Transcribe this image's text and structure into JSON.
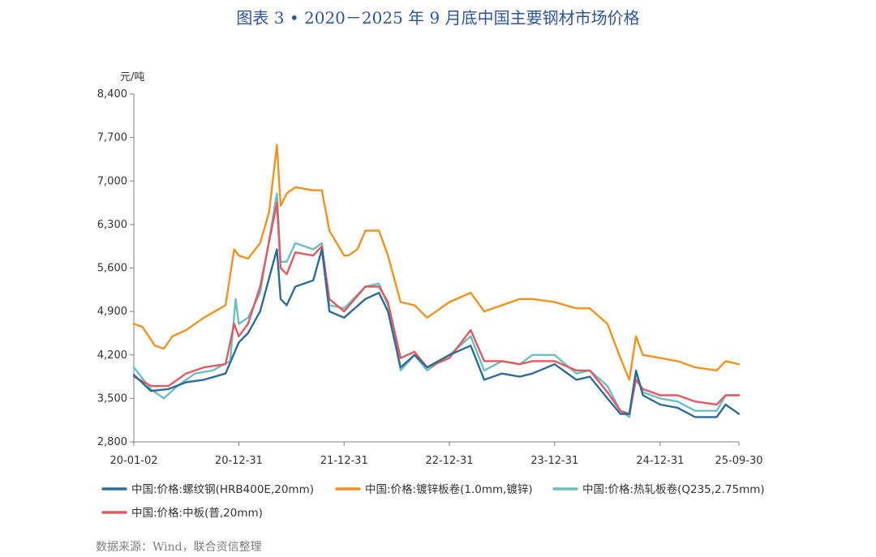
{
  "title": "图表 3 • 2020－2025 年 9 月底中国主要钢材市场价格",
  "unit_label": "元/吨",
  "source": "数据来源：Wind，联合资信整理",
  "colors": {
    "rebar": "#2e6c97",
    "galv": "#f0921e",
    "hot": "#6bbfc2",
    "plate": "#e05a62"
  },
  "chart_data": {
    "type": "line",
    "title": "图表 3 • 2020－2025 年 9 月底中国主要钢材市场价格",
    "ylabel": "元/吨",
    "ylim": [
      2800,
      8400
    ],
    "yticks": [
      2800,
      3500,
      4200,
      4900,
      5600,
      6300,
      7000,
      7700,
      8400
    ],
    "ytick_labels": [
      "2,800",
      "3,500",
      "4,200",
      "4,900",
      "5,600",
      "6,300",
      "7,000",
      "7,700",
      "8,400"
    ],
    "xlim": [
      "2020-01-02",
      "2025-09-30"
    ],
    "xticks": [
      "2020-01-02",
      "2020-12-31",
      "2021-12-31",
      "2022-12-31",
      "2023-12-31",
      "2024-12-31",
      "2025-09-30"
    ],
    "xtick_labels": [
      "20-01-02",
      "20-12-31",
      "21-12-31",
      "22-12-31",
      "23-12-31",
      "24-12-31",
      "25-09-30"
    ],
    "legend_position": "bottom",
    "series": [
      {
        "name": "中国:价格:螺纹钢(HRB400E,20mm)",
        "color": "#2e6c97",
        "points": [
          [
            "2020-01-02",
            3880
          ],
          [
            "2020-03-01",
            3620
          ],
          [
            "2020-05-01",
            3650
          ],
          [
            "2020-07-01",
            3760
          ],
          [
            "2020-09-01",
            3800
          ],
          [
            "2020-11-15",
            3900
          ],
          [
            "2020-12-31",
            4400
          ],
          [
            "2021-02-01",
            4550
          ],
          [
            "2021-03-15",
            4900
          ],
          [
            "2021-05-12",
            5900
          ],
          [
            "2021-05-25",
            5100
          ],
          [
            "2021-06-15",
            5000
          ],
          [
            "2021-07-15",
            5300
          ],
          [
            "2021-09-15",
            5400
          ],
          [
            "2021-10-15",
            5900
          ],
          [
            "2021-11-10",
            4900
          ],
          [
            "2021-12-31",
            4800
          ],
          [
            "2022-03-15",
            5100
          ],
          [
            "2022-05-01",
            5200
          ],
          [
            "2022-06-01",
            4900
          ],
          [
            "2022-07-15",
            4000
          ],
          [
            "2022-09-01",
            4200
          ],
          [
            "2022-10-15",
            4000
          ],
          [
            "2022-12-31",
            4200
          ],
          [
            "2023-03-15",
            4350
          ],
          [
            "2023-05-01",
            3800
          ],
          [
            "2023-07-01",
            3900
          ],
          [
            "2023-09-01",
            3850
          ],
          [
            "2023-10-15",
            3900
          ],
          [
            "2023-12-31",
            4050
          ],
          [
            "2024-03-15",
            3800
          ],
          [
            "2024-05-01",
            3850
          ],
          [
            "2024-07-01",
            3500
          ],
          [
            "2024-08-15",
            3250
          ],
          [
            "2024-09-15",
            3250
          ],
          [
            "2024-10-08",
            3950
          ],
          [
            "2024-11-01",
            3550
          ],
          [
            "2024-12-31",
            3400
          ],
          [
            "2025-03-01",
            3350
          ],
          [
            "2025-05-01",
            3200
          ],
          [
            "2025-07-15",
            3200
          ],
          [
            "2025-08-15",
            3400
          ],
          [
            "2025-09-30",
            3250
          ]
        ]
      },
      {
        "name": "中国:价格:镀锌板卷(1.0mm,镀锌)",
        "color": "#f0921e",
        "points": [
          [
            "2020-01-02",
            4700
          ],
          [
            "2020-02-01",
            4650
          ],
          [
            "2020-03-15",
            4350
          ],
          [
            "2020-04-15",
            4300
          ],
          [
            "2020-05-15",
            4500
          ],
          [
            "2020-07-01",
            4600
          ],
          [
            "2020-09-01",
            4800
          ],
          [
            "2020-11-15",
            5000
          ],
          [
            "2020-12-15",
            5900
          ],
          [
            "2020-12-31",
            5800
          ],
          [
            "2021-02-01",
            5750
          ],
          [
            "2021-03-15",
            6000
          ],
          [
            "2021-04-15",
            6500
          ],
          [
            "2021-05-12",
            7580
          ],
          [
            "2021-05-25",
            6600
          ],
          [
            "2021-06-15",
            6800
          ],
          [
            "2021-07-15",
            6900
          ],
          [
            "2021-09-15",
            6850
          ],
          [
            "2021-10-15",
            6850
          ],
          [
            "2021-11-10",
            6200
          ],
          [
            "2021-12-31",
            5800
          ],
          [
            "2022-01-15",
            5800
          ],
          [
            "2022-02-15",
            5900
          ],
          [
            "2022-03-15",
            6200
          ],
          [
            "2022-05-01",
            6200
          ],
          [
            "2022-06-01",
            5800
          ],
          [
            "2022-07-15",
            5050
          ],
          [
            "2022-09-01",
            5000
          ],
          [
            "2022-10-15",
            4800
          ],
          [
            "2022-12-31",
            5050
          ],
          [
            "2023-03-15",
            5200
          ],
          [
            "2023-05-01",
            4900
          ],
          [
            "2023-07-01",
            5000
          ],
          [
            "2023-09-01",
            5100
          ],
          [
            "2023-10-15",
            5100
          ],
          [
            "2023-12-31",
            5050
          ],
          [
            "2024-03-15",
            4950
          ],
          [
            "2024-05-01",
            4950
          ],
          [
            "2024-07-01",
            4700
          ],
          [
            "2024-08-15",
            4150
          ],
          [
            "2024-09-15",
            3800
          ],
          [
            "2024-10-08",
            4500
          ],
          [
            "2024-11-01",
            4200
          ],
          [
            "2024-12-31",
            4150
          ],
          [
            "2025-03-01",
            4100
          ],
          [
            "2025-05-01",
            4000
          ],
          [
            "2025-07-15",
            3950
          ],
          [
            "2025-08-15",
            4100
          ],
          [
            "2025-09-30",
            4050
          ]
        ]
      },
      {
        "name": "中国:价格:热轧板卷(Q235,2.75mm)",
        "color": "#6bbfc2",
        "points": [
          [
            "2020-01-02",
            4000
          ],
          [
            "2020-03-01",
            3650
          ],
          [
            "2020-04-15",
            3500
          ],
          [
            "2020-06-01",
            3700
          ],
          [
            "2020-08-01",
            3900
          ],
          [
            "2020-10-01",
            3950
          ],
          [
            "2020-12-01",
            4100
          ],
          [
            "2020-12-20",
            5100
          ],
          [
            "2020-12-31",
            4700
          ],
          [
            "2021-02-01",
            4800
          ],
          [
            "2021-03-15",
            5200
          ],
          [
            "2021-05-12",
            6800
          ],
          [
            "2021-05-25",
            5700
          ],
          [
            "2021-06-15",
            5700
          ],
          [
            "2021-07-15",
            6000
          ],
          [
            "2021-09-15",
            5900
          ],
          [
            "2021-10-15",
            6000
          ],
          [
            "2021-11-10",
            5000
          ],
          [
            "2021-12-31",
            4950
          ],
          [
            "2022-03-15",
            5300
          ],
          [
            "2022-05-01",
            5350
          ],
          [
            "2022-06-01",
            5000
          ],
          [
            "2022-07-15",
            3950
          ],
          [
            "2022-09-01",
            4200
          ],
          [
            "2022-10-15",
            3950
          ],
          [
            "2022-12-31",
            4200
          ],
          [
            "2023-03-15",
            4500
          ],
          [
            "2023-05-01",
            3950
          ],
          [
            "2023-07-01",
            4100
          ],
          [
            "2023-09-01",
            4050
          ],
          [
            "2023-10-15",
            4200
          ],
          [
            "2023-12-31",
            4200
          ],
          [
            "2024-03-15",
            3900
          ],
          [
            "2024-05-01",
            3950
          ],
          [
            "2024-07-01",
            3700
          ],
          [
            "2024-08-15",
            3300
          ],
          [
            "2024-09-15",
            3200
          ],
          [
            "2024-10-08",
            3900
          ],
          [
            "2024-11-01",
            3600
          ],
          [
            "2024-12-31",
            3500
          ],
          [
            "2025-03-01",
            3450
          ],
          [
            "2025-05-01",
            3300
          ],
          [
            "2025-07-15",
            3300
          ],
          [
            "2025-08-15",
            3550
          ],
          [
            "2025-09-30",
            3550
          ]
        ]
      },
      {
        "name": "中国:价格:中板(普,20mm)",
        "color": "#e05a62",
        "points": [
          [
            "2020-01-02",
            3850
          ],
          [
            "2020-03-01",
            3700
          ],
          [
            "2020-05-01",
            3700
          ],
          [
            "2020-07-01",
            3900
          ],
          [
            "2020-09-01",
            4000
          ],
          [
            "2020-11-15",
            4050
          ],
          [
            "2020-12-15",
            4700
          ],
          [
            "2020-12-31",
            4500
          ],
          [
            "2021-02-01",
            4700
          ],
          [
            "2021-03-15",
            5300
          ],
          [
            "2021-05-12",
            6650
          ],
          [
            "2021-05-25",
            5600
          ],
          [
            "2021-06-15",
            5500
          ],
          [
            "2021-07-15",
            5850
          ],
          [
            "2021-09-15",
            5800
          ],
          [
            "2021-10-15",
            5950
          ],
          [
            "2021-11-10",
            5100
          ],
          [
            "2021-12-31",
            4900
          ],
          [
            "2022-03-15",
            5300
          ],
          [
            "2022-05-01",
            5300
          ],
          [
            "2022-06-01",
            5050
          ],
          [
            "2022-07-15",
            4150
          ],
          [
            "2022-09-01",
            4250
          ],
          [
            "2022-10-15",
            4000
          ],
          [
            "2022-12-31",
            4150
          ],
          [
            "2023-03-15",
            4600
          ],
          [
            "2023-05-01",
            4100
          ],
          [
            "2023-07-01",
            4100
          ],
          [
            "2023-09-01",
            4050
          ],
          [
            "2023-10-15",
            4100
          ],
          [
            "2023-12-31",
            4100
          ],
          [
            "2024-03-15",
            3950
          ],
          [
            "2024-05-01",
            3950
          ],
          [
            "2024-07-01",
            3600
          ],
          [
            "2024-08-15",
            3300
          ],
          [
            "2024-09-15",
            3250
          ],
          [
            "2024-10-08",
            3800
          ],
          [
            "2024-11-01",
            3650
          ],
          [
            "2024-12-31",
            3550
          ],
          [
            "2025-03-01",
            3550
          ],
          [
            "2025-05-01",
            3450
          ],
          [
            "2025-07-15",
            3400
          ],
          [
            "2025-08-15",
            3550
          ],
          [
            "2025-09-30",
            3550
          ]
        ]
      }
    ]
  }
}
